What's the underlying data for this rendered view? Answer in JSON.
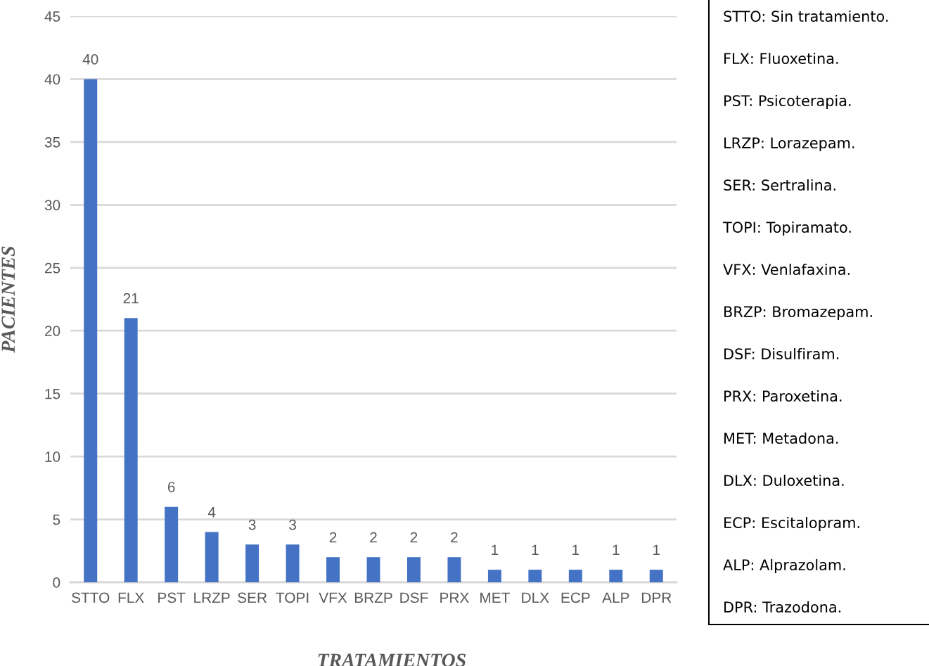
{
  "chart_data": {
    "type": "bar",
    "xlabel": "TRATAMIENTOS",
    "ylabel": "PACIENTES",
    "categories": [
      "STTO",
      "FLX",
      "PST",
      "LRZP",
      "SER",
      "TOPI",
      "VFX",
      "BRZP",
      "DSF",
      "PRX",
      "MET",
      "DLX",
      "ECP",
      "ALP",
      "DPR"
    ],
    "values": [
      40,
      21,
      6,
      4,
      3,
      3,
      2,
      2,
      2,
      2,
      1,
      1,
      1,
      1,
      1
    ],
    "color": "#4472c4",
    "ylim": [
      0,
      45
    ],
    "yticks": [
      0,
      5,
      10,
      15,
      20,
      25,
      30,
      35,
      40,
      45
    ],
    "grid": "y",
    "data_labels": true,
    "annotations": [
      "STTO: Sin tratamiento.",
      "FLX: Fluoxetina.",
      "PST: Psicoterapia.",
      "LRZP: Lorazepam.",
      "SER: Sertralina.",
      "TOPI: Topiramato.",
      "VFX: Venlafaxina.",
      "BRZP: Bromazepam.",
      "DSF: Disulfiram.",
      "PRX: Paroxetina.",
      "MET: Metadona.",
      "DLX: Duloxetina.",
      "ECP: Escitalopram.",
      "ALP: Alprazolam.",
      "DPR: Trazodona."
    ]
  }
}
